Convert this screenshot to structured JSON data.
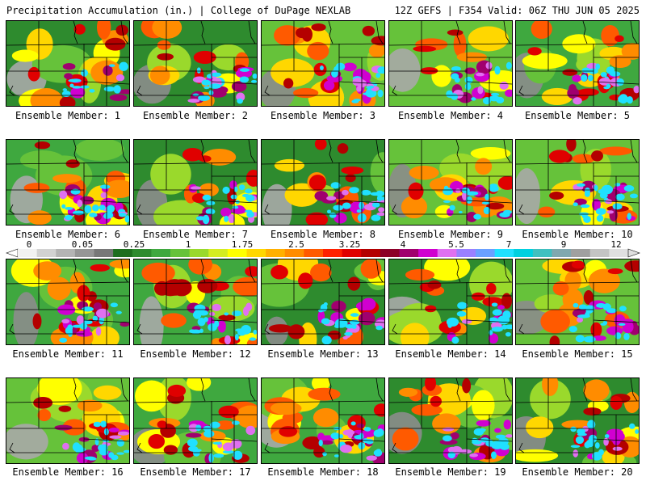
{
  "header": {
    "title_left": "Precipitation Accumulation (in.) | College of DuPage NEXLAB",
    "title_right": "12Z GEFS | F354 Valid: 06Z THU JUN 05 2025"
  },
  "legend": {
    "tick_labels": [
      "0",
      "0.05",
      "0.25",
      "1",
      "1.75",
      "2.5",
      "3.25",
      "4",
      "5.5",
      "7",
      "9",
      "12"
    ],
    "colors": [
      "#f2f2f2",
      "#d2d2d2",
      "#b4b4b4",
      "#969696",
      "#787878",
      "#1e6e1e",
      "#2e8b2e",
      "#3fa83f",
      "#66c23a",
      "#9ad92c",
      "#d4ec22",
      "#ffff00",
      "#ffd700",
      "#ffb000",
      "#ff8c00",
      "#ff5a00",
      "#ff2000",
      "#e00000",
      "#b40000",
      "#8c0028",
      "#a0006e",
      "#d000d0",
      "#e070f0",
      "#9a80ff",
      "#6aa0ff",
      "#20e0ff",
      "#00d0e0",
      "#40c0c0",
      "#80a8b0",
      "#a0a0a0",
      "#c4c4c4",
      "#e0e0e0"
    ]
  },
  "members": [
    {
      "label": "Ensemble Member: 1"
    },
    {
      "label": "Ensemble Member: 2"
    },
    {
      "label": "Ensemble Member: 3"
    },
    {
      "label": "Ensemble Member: 4"
    },
    {
      "label": "Ensemble Member: 5"
    },
    {
      "label": "Ensemble Member: 6"
    },
    {
      "label": "Ensemble Member: 7"
    },
    {
      "label": "Ensemble Member: 8"
    },
    {
      "label": "Ensemble Member: 9"
    },
    {
      "label": "Ensemble Member: 10"
    },
    {
      "label": "Ensemble Member: 11"
    },
    {
      "label": "Ensemble Member: 12"
    },
    {
      "label": "Ensemble Member: 13"
    },
    {
      "label": "Ensemble Member: 14"
    },
    {
      "label": "Ensemble Member: 15"
    },
    {
      "label": "Ensemble Member: 16"
    },
    {
      "label": "Ensemble Member: 17"
    },
    {
      "label": "Ensemble Member: 18"
    },
    {
      "label": "Ensemble Member: 19"
    },
    {
      "label": "Ensemble Member: 20"
    }
  ]
}
